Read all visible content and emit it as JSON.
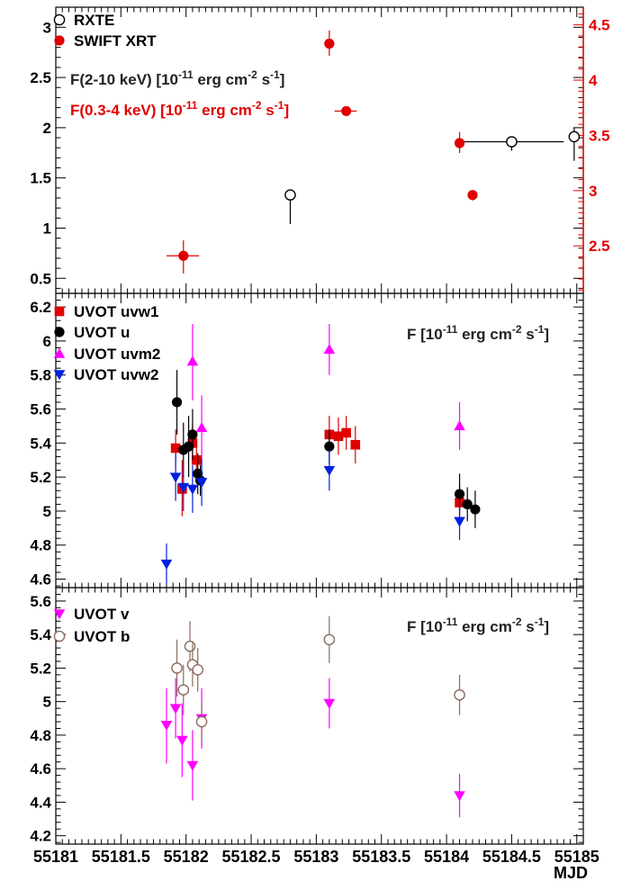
{
  "chart_data": [
    {
      "type": "scatter",
      "panel": "top",
      "ylim": [
        0.35,
        3.2
      ],
      "ylim_right": [
        2.07,
        4.66
      ],
      "yticks": [
        0.5,
        1,
        1.5,
        2,
        2.5,
        3
      ],
      "ytick_labels": [
        "0.5",
        "1",
        "1.5",
        "2",
        "2.5",
        "3"
      ],
      "yticks_right": [
        2.5,
        3,
        3.5,
        4,
        4.5
      ],
      "ytick_labels_right": [
        "2.5",
        "3",
        "3.5",
        "4",
        "4.5"
      ],
      "annotations": [
        {
          "text": "F(2-10 keV) [10",
          "sup": "-11",
          "text2": " erg cm",
          "sup2": "-2",
          "text3": " s",
          "sup3": "-1",
          "text4": "]",
          "color": "#222222"
        },
        {
          "text": "F(0.3-4 keV) [10",
          "sup": "-11",
          "text2": " erg cm",
          "sup2": "-2",
          "text3": " s",
          "sup3": "-1",
          "text4": "]",
          "color": "#e00000"
        }
      ],
      "series": [
        {
          "name": "RXTE",
          "marker": "open-circle",
          "color": "#000000",
          "axis": "left",
          "points": [
            {
              "x": 182.8,
              "y": 1.33,
              "ylo": 1.04,
              "yhi": 1.35
            },
            {
              "x": 184.5,
              "y": 1.86,
              "ylo": 1.77,
              "yhi": 1.9,
              "xlo": 184.1,
              "xhi": 184.9
            },
            {
              "x": 184.98,
              "y": 1.91,
              "ylo": 1.67,
              "yhi": 2.0
            }
          ]
        },
        {
          "name": "SWIFT XRT",
          "marker": "filled-circle",
          "color": "#e00000",
          "axis": "right",
          "points": [
            {
              "x": 181.98,
              "y": 2.41,
              "ylo": 2.25,
              "yhi": 2.55,
              "xlo": 181.85,
              "xhi": 182.1
            },
            {
              "x": 183.1,
              "y": 4.33,
              "ylo": 4.22,
              "yhi": 4.45
            },
            {
              "x": 183.23,
              "y": 3.72,
              "xlo": 183.14,
              "xhi": 183.31
            },
            {
              "x": 184.1,
              "y": 3.43,
              "ylo": 3.34,
              "yhi": 3.53
            },
            {
              "x": 184.2,
              "y": 2.96,
              "ylo": 2.91,
              "yhi": 3.0
            }
          ]
        }
      ]
    },
    {
      "type": "scatter",
      "panel": "middle",
      "ylim": [
        4.55,
        6.28
      ],
      "yticks": [
        4.6,
        4.8,
        5,
        5.2,
        5.4,
        5.6,
        5.8,
        6,
        6.2
      ],
      "ytick_labels": [
        "4.6",
        "4.8",
        "5",
        "5.2",
        "5.4",
        "5.6",
        "5.8",
        "6",
        "6.2"
      ],
      "annotations": [
        {
          "text": "F [10",
          "sup": "-11",
          "text2": " erg cm",
          "sup2": "-2",
          "text3": " s",
          "sup3": "-1",
          "text4": "]",
          "color": "#222222"
        }
      ],
      "series": [
        {
          "name": "UVOT uvw1",
          "marker": "filled-square",
          "color": "#e00000",
          "points": [
            {
              "x": 181.92,
              "y": 5.37,
              "ylo": 5.26,
              "yhi": 5.48
            },
            {
              "x": 181.97,
              "y": 5.13,
              "ylo": 4.97,
              "yhi": 5.3
            },
            {
              "x": 182.05,
              "y": 5.4,
              "ylo": 5.29,
              "yhi": 5.51
            },
            {
              "x": 182.08,
              "y": 5.3,
              "ylo": 5.19,
              "yhi": 5.41
            },
            {
              "x": 183.1,
              "y": 5.45,
              "ylo": 5.34,
              "yhi": 5.56
            },
            {
              "x": 183.17,
              "y": 5.44,
              "ylo": 5.33,
              "yhi": 5.55
            },
            {
              "x": 183.23,
              "y": 5.46,
              "ylo": 5.36,
              "yhi": 5.56
            },
            {
              "x": 183.3,
              "y": 5.39,
              "ylo": 5.28,
              "yhi": 5.5
            },
            {
              "x": 184.1,
              "y": 5.05,
              "ylo": 4.94,
              "yhi": 5.16
            }
          ]
        },
        {
          "name": "UVOT u",
          "marker": "filled-circle",
          "color": "#000000",
          "points": [
            {
              "x": 181.93,
              "y": 5.64,
              "ylo": 5.45,
              "yhi": 5.83
            },
            {
              "x": 181.98,
              "y": 5.36,
              "ylo": 5.2,
              "yhi": 5.52
            },
            {
              "x": 182.02,
              "y": 5.38,
              "ylo": 5.2,
              "yhi": 5.56
            },
            {
              "x": 182.05,
              "y": 5.45,
              "ylo": 5.3,
              "yhi": 5.6
            },
            {
              "x": 182.09,
              "y": 5.22,
              "ylo": 5.1,
              "yhi": 5.34
            },
            {
              "x": 182.11,
              "y": 5.18,
              "ylo": 5.09,
              "yhi": 5.27
            },
            {
              "x": 183.1,
              "y": 5.38,
              "ylo": 5.28,
              "yhi": 5.48
            },
            {
              "x": 184.1,
              "y": 5.1,
              "ylo": 4.98,
              "yhi": 5.22
            },
            {
              "x": 184.16,
              "y": 5.04,
              "ylo": 4.94,
              "yhi": 5.14
            },
            {
              "x": 184.22,
              "y": 5.01,
              "ylo": 4.9,
              "yhi": 5.12
            }
          ]
        },
        {
          "name": "UVOT uvm2",
          "marker": "triangle-up",
          "color": "#ff00ff",
          "points": [
            {
              "x": 182.05,
              "y": 5.88,
              "ylo": 5.65,
              "yhi": 6.1
            },
            {
              "x": 182.12,
              "y": 5.49,
              "ylo": 5.3,
              "yhi": 5.68
            },
            {
              "x": 183.1,
              "y": 5.95,
              "ylo": 5.8,
              "yhi": 6.1
            },
            {
              "x": 184.1,
              "y": 5.5,
              "ylo": 5.36,
              "yhi": 5.64
            }
          ]
        },
        {
          "name": "UVOT uvw2",
          "marker": "triangle-down",
          "color": "#0020e0",
          "points": [
            {
              "x": 181.85,
              "y": 4.69,
              "ylo": 4.57,
              "yhi": 4.81
            },
            {
              "x": 181.92,
              "y": 5.2,
              "ylo": 5.06,
              "yhi": 5.34
            },
            {
              "x": 181.98,
              "y": 5.14,
              "ylo": 5.0,
              "yhi": 5.28
            },
            {
              "x": 182.05,
              "y": 5.13,
              "ylo": 4.99,
              "yhi": 5.27
            },
            {
              "x": 182.12,
              "y": 5.17,
              "ylo": 5.03,
              "yhi": 5.31
            },
            {
              "x": 183.1,
              "y": 5.24,
              "ylo": 5.12,
              "yhi": 5.36
            },
            {
              "x": 184.1,
              "y": 4.94,
              "ylo": 4.83,
              "yhi": 5.05
            }
          ]
        }
      ]
    },
    {
      "type": "scatter",
      "panel": "bottom",
      "xlabel": "MJD",
      "xlim": [
        181,
        185.05
      ],
      "xticks": [
        181,
        181.5,
        182,
        182.5,
        183,
        183.5,
        184,
        184.5,
        185
      ],
      "xtick_labels": [
        "55181",
        "55181.5",
        "55182",
        "55182.5",
        "55183",
        "55183.5",
        "55184",
        "55184.5",
        "55185"
      ],
      "ylim": [
        4.15,
        5.68
      ],
      "yticks": [
        4.2,
        4.4,
        4.6,
        4.8,
        5,
        5.2,
        5.4,
        5.6
      ],
      "ytick_labels": [
        "4.2",
        "4.4",
        "4.6",
        "4.8",
        "5",
        "5.2",
        "5.4",
        "5.6"
      ],
      "annotations": [
        {
          "text": "F [10",
          "sup": "-11",
          "text2": " erg cm",
          "sup2": "-2",
          "text3": " s",
          "sup3": "-1",
          "text4": "]",
          "color": "#222222"
        }
      ],
      "series": [
        {
          "name": "UVOT v",
          "marker": "triangle-down",
          "color": "#ff00ff",
          "points": [
            {
              "x": 181.85,
              "y": 4.86,
              "ylo": 4.63,
              "yhi": 5.08
            },
            {
              "x": 181.92,
              "y": 4.96,
              "ylo": 4.78,
              "yhi": 5.14
            },
            {
              "x": 181.97,
              "y": 4.77,
              "ylo": 4.55,
              "yhi": 4.99
            },
            {
              "x": 182.05,
              "y": 4.62,
              "ylo": 4.41,
              "yhi": 4.83
            },
            {
              "x": 182.12,
              "y": 4.9,
              "ylo": 4.72,
              "yhi": 5.08
            },
            {
              "x": 183.1,
              "y": 4.99,
              "ylo": 4.84,
              "yhi": 5.14
            },
            {
              "x": 184.1,
              "y": 4.44,
              "ylo": 4.31,
              "yhi": 4.57
            }
          ]
        },
        {
          "name": "UVOT b",
          "marker": "open-circle",
          "color": "#8b6b5b",
          "points": [
            {
              "x": 181.93,
              "y": 5.2,
              "ylo": 5.03,
              "yhi": 5.37
            },
            {
              "x": 181.98,
              "y": 5.07,
              "ylo": 4.92,
              "yhi": 5.22
            },
            {
              "x": 182.03,
              "y": 5.33,
              "ylo": 5.18,
              "yhi": 5.48
            },
            {
              "x": 182.05,
              "y": 5.22,
              "ylo": 5.09,
              "yhi": 5.35
            },
            {
              "x": 182.09,
              "y": 5.19,
              "ylo": 5.06,
              "yhi": 5.32
            },
            {
              "x": 182.12,
              "y": 4.88,
              "ylo": 4.76,
              "yhi": 5.0
            },
            {
              "x": 183.1,
              "y": 5.37,
              "ylo": 5.23,
              "yhi": 5.51
            },
            {
              "x": 184.1,
              "y": 5.04,
              "ylo": 4.92,
              "yhi": 5.16
            }
          ]
        }
      ]
    }
  ]
}
